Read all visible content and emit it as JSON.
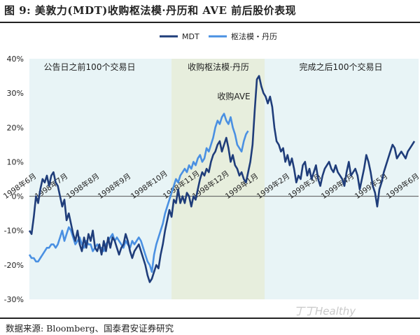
{
  "title": "图 9:  美敦力(MDT)收购枢法模·丹历和 AVE 前后股价表现",
  "source": "数据来源:  Bloomberg、国泰君安证券研究",
  "watermark": "丁丁Healthy",
  "chart_data": {
    "type": "line",
    "ylim": [
      -30,
      40
    ],
    "yticks": [
      "-30%",
      "-20%",
      "-10%",
      "0%",
      "10%",
      "20%",
      "30%",
      "40%"
    ],
    "grid": false,
    "legend_position": "top-center",
    "x_labels": [
      "1998年6月",
      "1998年7月",
      "1998年8月",
      "1998年9月",
      "1998年10月",
      "1998年11月",
      "1998年12月",
      "1999年1月",
      "1999年2月",
      "1999年3月",
      "1999年4月",
      "1999年5月",
      "1999年6月"
    ],
    "periods": [
      {
        "label": "公告日之前100个交易日",
        "color": "#e8f4f6"
      },
      {
        "label": "收购枢法模·丹历",
        "color": "#e7eedd"
      },
      {
        "label": "完成之后100个交易日",
        "color": "#e8f4f6"
      }
    ],
    "annotations": [
      "收购AVE"
    ],
    "series": [
      {
        "name": "MDT",
        "color": "#1f3d7a",
        "values": [
          -10,
          -11,
          -6,
          0,
          -2,
          2,
          5,
          4,
          6,
          3,
          6,
          7,
          4,
          3,
          0,
          -3,
          -1,
          -7,
          -5,
          -8,
          -11,
          -13,
          -10,
          -14,
          -16,
          -12,
          -15,
          -11,
          -13,
          -10,
          -15,
          -16,
          -14,
          -17,
          -13,
          -16,
          -12,
          -15,
          -12,
          -13,
          -15,
          -17,
          -15,
          -14,
          -11,
          -13,
          -16,
          -18,
          -16,
          -15,
          -14,
          -16,
          -18,
          -20,
          -23,
          -25,
          -24,
          -22,
          -20,
          -21,
          -17,
          -14,
          -10,
          -7,
          -4,
          -6,
          -1,
          -2,
          2,
          -2,
          0,
          -2,
          1,
          0,
          -3,
          0,
          -1,
          2,
          5,
          7,
          6,
          8,
          7,
          10,
          12,
          13,
          15,
          16,
          13,
          15,
          17,
          14,
          10,
          12,
          9,
          8,
          6,
          7,
          5,
          4,
          7,
          10,
          15,
          25,
          34,
          35,
          32,
          30,
          29,
          27,
          29,
          26,
          20,
          16,
          15,
          13,
          14,
          10,
          12,
          9,
          11,
          8,
          4,
          6,
          5,
          9,
          10,
          6,
          8,
          5,
          7,
          9,
          5,
          3,
          6,
          8,
          9,
          10,
          8,
          7,
          9,
          7,
          6,
          5,
          3,
          7,
          10,
          6,
          7,
          8,
          6,
          2,
          5,
          8,
          12,
          10,
          7,
          3,
          1,
          -3,
          2,
          4,
          7,
          9,
          11,
          13,
          15,
          14,
          11,
          12,
          13,
          12,
          11,
          13,
          14,
          15,
          16
        ]
      },
      {
        "name": "枢法模・丹历",
        "color": "#4a90e2",
        "values": [
          -17,
          -18,
          -18,
          -19,
          -19,
          -18,
          -17,
          -16,
          -15,
          -15,
          -14,
          -14,
          -15,
          -14,
          -12,
          -10,
          -13,
          -11,
          -9,
          -10,
          -12,
          -14,
          -13,
          -12,
          -14,
          -15,
          -13,
          -14,
          -14,
          -16,
          -15,
          -14,
          -15,
          -15,
          -16,
          -14,
          -13,
          -12,
          -11,
          -13,
          -12,
          -13,
          -14,
          -15,
          -13,
          -14,
          -15,
          -13,
          -14,
          -13,
          -12,
          -13,
          -15,
          -17,
          -19,
          -20,
          -22,
          -17,
          -14,
          -12,
          -10,
          -8,
          -5,
          -3,
          -1,
          1,
          3,
          5,
          4,
          6,
          7,
          8,
          7,
          9,
          8,
          10,
          9,
          11,
          12,
          10,
          11,
          14,
          13,
          15,
          17,
          20,
          22,
          21,
          23,
          24,
          22,
          21,
          23,
          20,
          18,
          15,
          14,
          13,
          16,
          18,
          19
        ]
      }
    ]
  }
}
